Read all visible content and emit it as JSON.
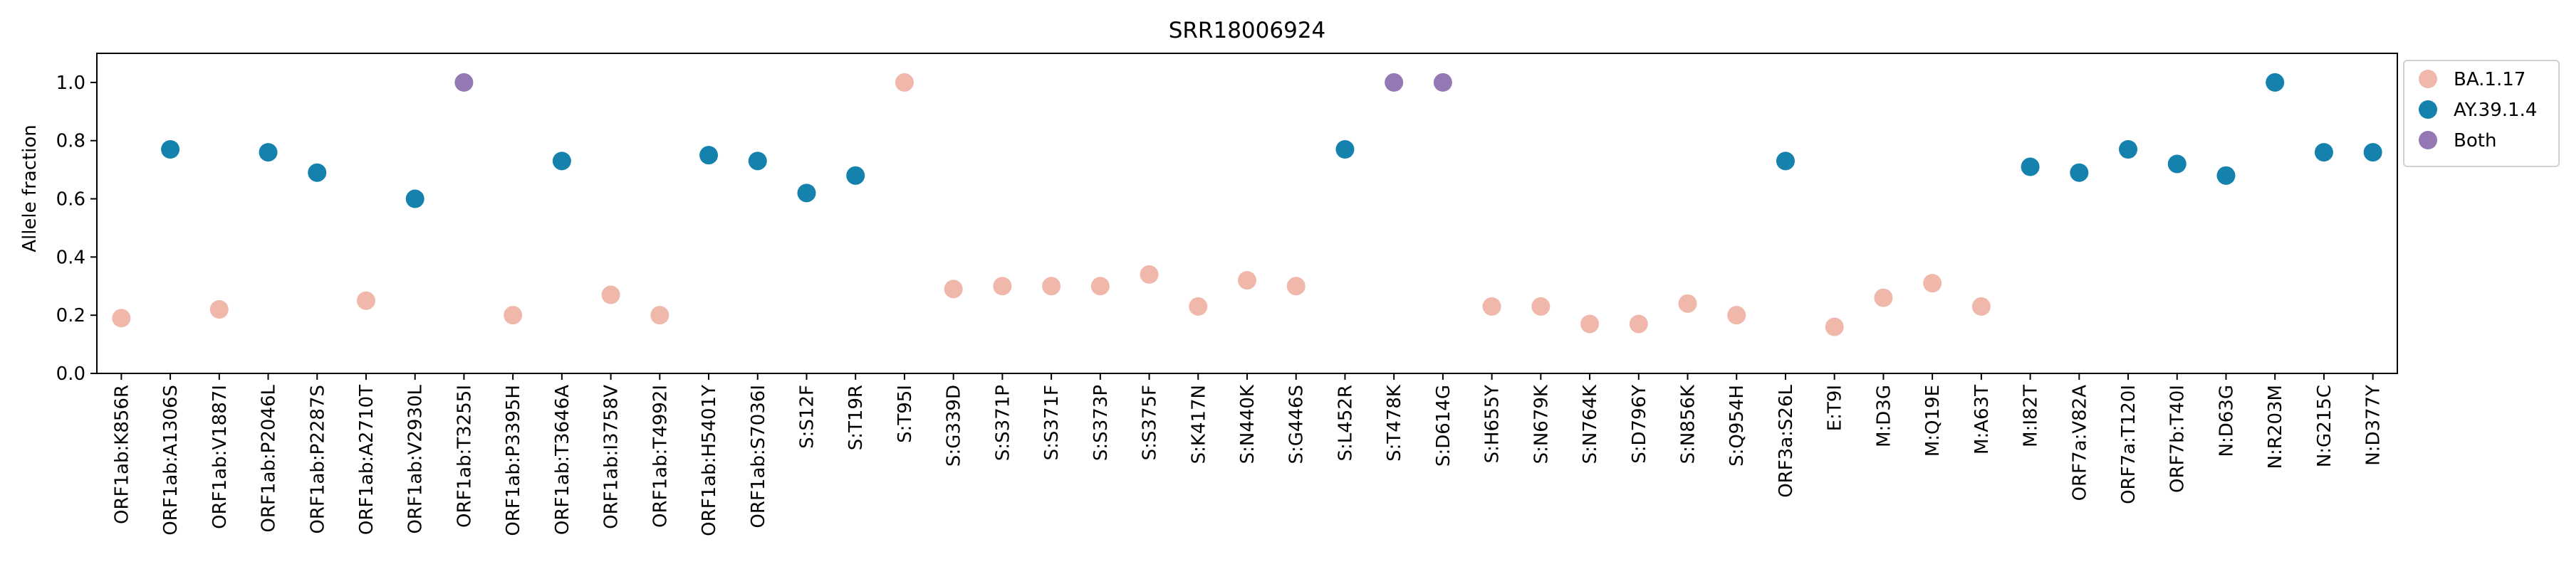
{
  "chart_data": {
    "type": "scatter",
    "title": "SRR18006924",
    "xlabel": "",
    "ylabel": "Allele fraction",
    "ylim": [
      0,
      1.1
    ],
    "yticks": [
      0.0,
      0.2,
      0.4,
      0.6,
      0.8,
      1.0
    ],
    "ytick_labels": [
      "0.0",
      "0.2",
      "0.4",
      "0.6",
      "0.8",
      "1.0"
    ],
    "grid": false,
    "legend_position": "outside-upper-right",
    "categories": [
      "ORF1ab:K856R",
      "ORF1ab:A1306S",
      "ORF1ab:V1887I",
      "ORF1ab:P2046L",
      "ORF1ab:P2287S",
      "ORF1ab:A2710T",
      "ORF1ab:V2930L",
      "ORF1ab:T3255I",
      "ORF1ab:P3395H",
      "ORF1ab:T3646A",
      "ORF1ab:I3758V",
      "ORF1ab:T4992I",
      "ORF1ab:H5401Y",
      "ORF1ab:S7036I",
      "S:S12F",
      "S:T19R",
      "S:T95I",
      "S:G339D",
      "S:S371P",
      "S:S371F",
      "S:S373P",
      "S:S375F",
      "S:K417N",
      "S:N440K",
      "S:G446S",
      "S:L452R",
      "S:T478K",
      "S:D614G",
      "S:H655Y",
      "S:N679K",
      "S:N764K",
      "S:D796Y",
      "S:N856K",
      "S:Q954H",
      "ORF3a:S26L",
      "E:T9I",
      "M:D3G",
      "M:Q19E",
      "M:A63T",
      "M:I82T",
      "ORF7a:V82A",
      "ORF7a:T120I",
      "ORF7b:T40I",
      "N:D63G",
      "N:R203M",
      "N:G215C",
      "N:D377Y"
    ],
    "series": [
      {
        "name": "BA.1.17",
        "color": "#f0b8ab",
        "points": [
          {
            "x": "ORF1ab:K856R",
            "y": 0.19
          },
          {
            "x": "ORF1ab:V1887I",
            "y": 0.22
          },
          {
            "x": "ORF1ab:A2710T",
            "y": 0.25
          },
          {
            "x": "ORF1ab:P3395H",
            "y": 0.2
          },
          {
            "x": "ORF1ab:I3758V",
            "y": 0.27
          },
          {
            "x": "ORF1ab:T4992I",
            "y": 0.2
          },
          {
            "x": "S:T95I",
            "y": 1.0
          },
          {
            "x": "S:G339D",
            "y": 0.29
          },
          {
            "x": "S:S371P",
            "y": 0.3
          },
          {
            "x": "S:S371F",
            "y": 0.3
          },
          {
            "x": "S:S373P",
            "y": 0.3
          },
          {
            "x": "S:S375F",
            "y": 0.34
          },
          {
            "x": "S:K417N",
            "y": 0.23
          },
          {
            "x": "S:N440K",
            "y": 0.32
          },
          {
            "x": "S:G446S",
            "y": 0.3
          },
          {
            "x": "S:H655Y",
            "y": 0.23
          },
          {
            "x": "S:N679K",
            "y": 0.23
          },
          {
            "x": "S:N764K",
            "y": 0.17
          },
          {
            "x": "S:D796Y",
            "y": 0.17
          },
          {
            "x": "S:N856K",
            "y": 0.24
          },
          {
            "x": "S:Q954H",
            "y": 0.2
          },
          {
            "x": "E:T9I",
            "y": 0.16
          },
          {
            "x": "M:D3G",
            "y": 0.26
          },
          {
            "x": "M:Q19E",
            "y": 0.31
          },
          {
            "x": "M:A63T",
            "y": 0.23
          }
        ]
      },
      {
        "name": "AY.39.1.4",
        "color": "#1482ad",
        "points": [
          {
            "x": "ORF1ab:A1306S",
            "y": 0.77
          },
          {
            "x": "ORF1ab:P2046L",
            "y": 0.76
          },
          {
            "x": "ORF1ab:P2287S",
            "y": 0.69
          },
          {
            "x": "ORF1ab:V2930L",
            "y": 0.6
          },
          {
            "x": "ORF1ab:T3646A",
            "y": 0.73
          },
          {
            "x": "ORF1ab:H5401Y",
            "y": 0.75
          },
          {
            "x": "ORF1ab:S7036I",
            "y": 0.73
          },
          {
            "x": "S:S12F",
            "y": 0.62
          },
          {
            "x": "S:T19R",
            "y": 0.68
          },
          {
            "x": "S:L452R",
            "y": 0.77
          },
          {
            "x": "ORF3a:S26L",
            "y": 0.73
          },
          {
            "x": "M:I82T",
            "y": 0.71
          },
          {
            "x": "ORF7a:V82A",
            "y": 0.69
          },
          {
            "x": "ORF7a:T120I",
            "y": 0.77
          },
          {
            "x": "ORF7b:T40I",
            "y": 0.72
          },
          {
            "x": "N:D63G",
            "y": 0.68
          },
          {
            "x": "N:R203M",
            "y": 1.0
          },
          {
            "x": "N:G215C",
            "y": 0.76
          },
          {
            "x": "N:D377Y",
            "y": 0.76
          }
        ]
      },
      {
        "name": "Both",
        "color": "#9478b4",
        "points": [
          {
            "x": "ORF1ab:T3255I",
            "y": 1.0
          },
          {
            "x": "S:T478K",
            "y": 1.0
          },
          {
            "x": "S:D614G",
            "y": 1.0
          }
        ]
      }
    ]
  }
}
